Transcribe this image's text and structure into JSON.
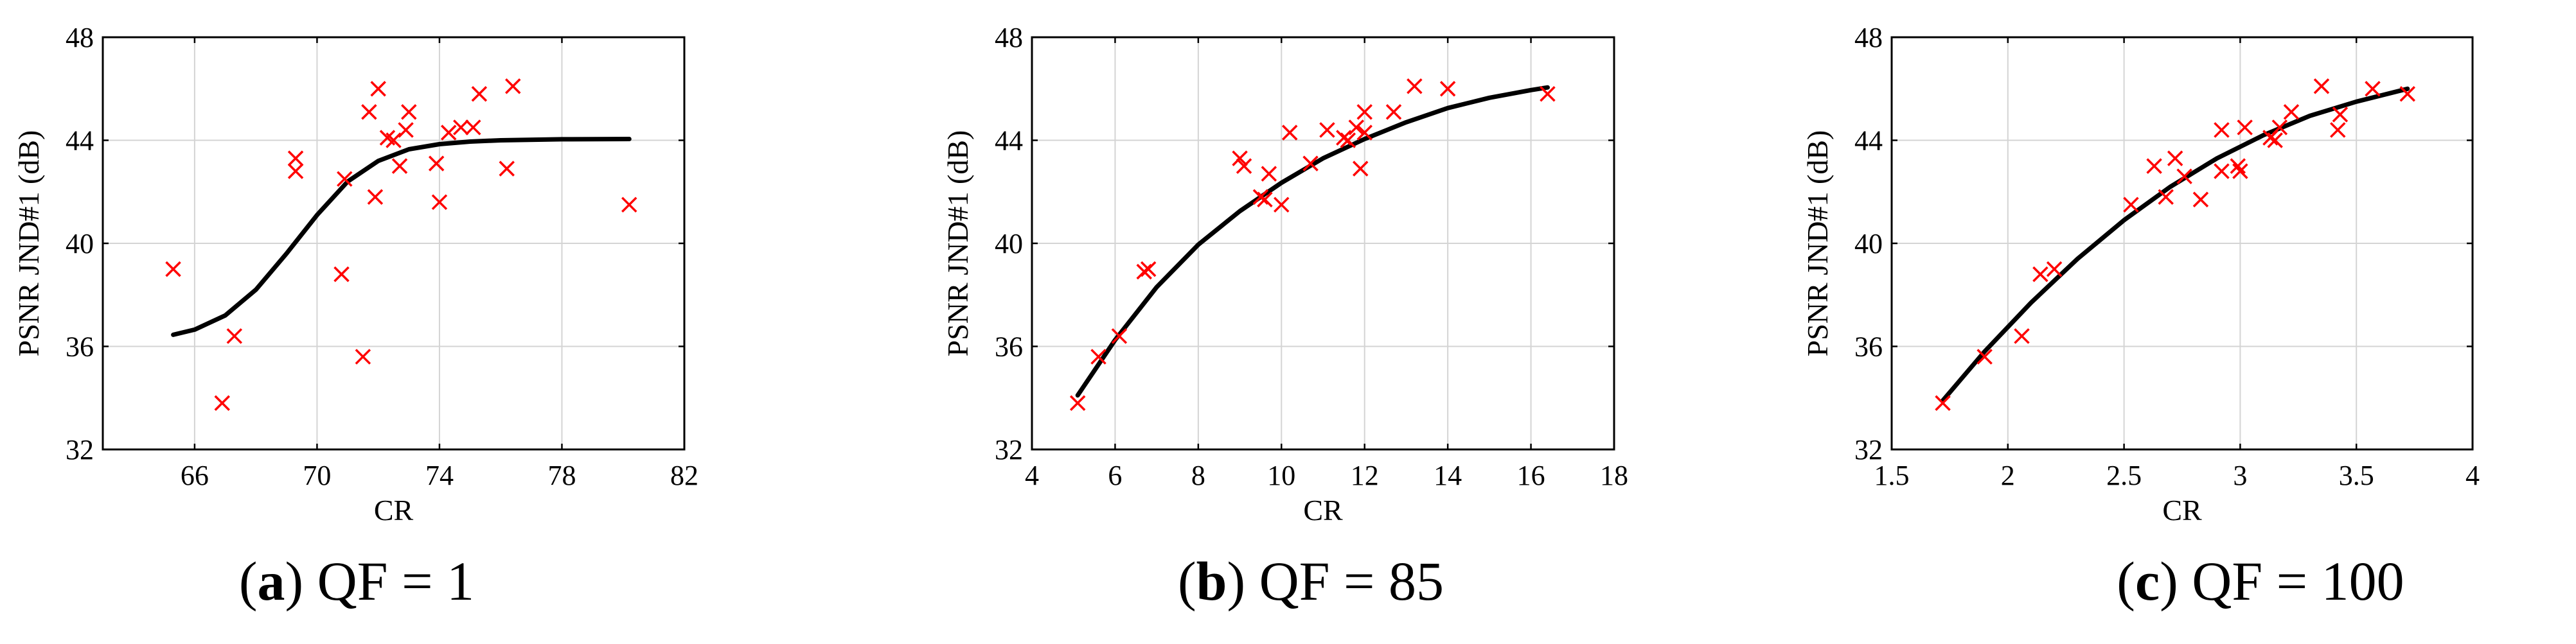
{
  "chart_data": [
    {
      "type": "scatter",
      "panel_letter": "a",
      "caption": "QF = 1",
      "xlabel": "CR",
      "ylabel": "PSNR JND#1 (dB)",
      "xlim": [
        63,
        82
      ],
      "ylim": [
        32,
        48
      ],
      "xticks": [
        "66",
        "70",
        "74",
        "78",
        "82"
      ],
      "xtick_values": [
        66,
        70,
        74,
        78,
        82
      ],
      "yticks": [
        "32",
        "36",
        "40",
        "44",
        "48"
      ],
      "ytick_values": [
        32,
        36,
        40,
        44,
        48
      ],
      "grid": true,
      "series": [
        {
          "name": "data",
          "marker": "x",
          "color": "#ff0000",
          "points": [
            [
              65.3,
              39.0
            ],
            [
              66.9,
              33.8
            ],
            [
              67.3,
              36.4
            ],
            [
              69.3,
              42.8
            ],
            [
              69.3,
              43.3
            ],
            [
              70.8,
              38.8
            ],
            [
              70.9,
              42.5
            ],
            [
              71.5,
              35.6
            ],
            [
              71.7,
              45.1
            ],
            [
              71.9,
              41.8
            ],
            [
              72.0,
              46.0
            ],
            [
              72.3,
              44.1
            ],
            [
              72.5,
              44.0
            ],
            [
              72.7,
              43.0
            ],
            [
              72.9,
              44.4
            ],
            [
              73.0,
              45.1
            ],
            [
              73.9,
              43.1
            ],
            [
              74.0,
              41.6
            ],
            [
              74.3,
              44.3
            ],
            [
              74.7,
              44.5
            ],
            [
              75.1,
              44.5
            ],
            [
              75.3,
              45.8
            ],
            [
              76.2,
              42.9
            ],
            [
              76.4,
              46.1
            ],
            [
              80.2,
              41.5
            ]
          ]
        },
        {
          "name": "fit",
          "type": "line",
          "color": "#000000",
          "points": [
            [
              65.3,
              36.45
            ],
            [
              66.0,
              36.65
            ],
            [
              67.0,
              37.2
            ],
            [
              68.0,
              38.2
            ],
            [
              69.0,
              39.6
            ],
            [
              70.0,
              41.1
            ],
            [
              71.0,
              42.4
            ],
            [
              72.0,
              43.2
            ],
            [
              73.0,
              43.65
            ],
            [
              74.0,
              43.85
            ],
            [
              75.0,
              43.95
            ],
            [
              76.0,
              44.0
            ],
            [
              78.0,
              44.04
            ],
            [
              80.2,
              44.05
            ]
          ]
        }
      ]
    },
    {
      "type": "scatter",
      "panel_letter": "b",
      "caption": "QF = 85",
      "xlabel": "CR",
      "ylabel": "PSNR JND#1 (dB)",
      "xlim": [
        4,
        18
      ],
      "ylim": [
        32,
        48
      ],
      "xticks": [
        "4",
        "6",
        "8",
        "10",
        "12",
        "14",
        "16",
        "18"
      ],
      "xtick_values": [
        4,
        6,
        8,
        10,
        12,
        14,
        16,
        18
      ],
      "yticks": [
        "32",
        "36",
        "40",
        "44",
        "48"
      ],
      "ytick_values": [
        32,
        36,
        40,
        44,
        48
      ],
      "grid": true,
      "series": [
        {
          "name": "data",
          "marker": "x",
          "color": "#ff0000",
          "points": [
            [
              5.1,
              33.8
            ],
            [
              5.6,
              35.6
            ],
            [
              6.1,
              36.4
            ],
            [
              6.7,
              38.9
            ],
            [
              6.8,
              39.0
            ],
            [
              9.0,
              43.3
            ],
            [
              9.1,
              43.0
            ],
            [
              9.5,
              41.8
            ],
            [
              9.6,
              41.7
            ],
            [
              9.7,
              42.7
            ],
            [
              10.0,
              41.5
            ],
            [
              10.2,
              44.3
            ],
            [
              10.7,
              43.1
            ],
            [
              11.1,
              44.4
            ],
            [
              11.5,
              44.1
            ],
            [
              11.6,
              44.0
            ],
            [
              11.8,
              44.5
            ],
            [
              11.9,
              42.9
            ],
            [
              12.0,
              44.3
            ],
            [
              12.0,
              45.1
            ],
            [
              12.7,
              45.1
            ],
            [
              13.2,
              46.1
            ],
            [
              14.0,
              46.0
            ],
            [
              16.4,
              45.8
            ]
          ]
        },
        {
          "name": "fit",
          "type": "line",
          "color": "#000000",
          "points": [
            [
              5.1,
              34.1
            ],
            [
              6.0,
              36.25
            ],
            [
              7.0,
              38.3
            ],
            [
              8.0,
              39.95
            ],
            [
              9.0,
              41.25
            ],
            [
              10.0,
              42.35
            ],
            [
              11.0,
              43.3
            ],
            [
              12.0,
              44.05
            ],
            [
              13.0,
              44.7
            ],
            [
              14.0,
              45.25
            ],
            [
              15.0,
              45.65
            ],
            [
              16.0,
              45.95
            ],
            [
              16.4,
              46.05
            ]
          ]
        }
      ]
    },
    {
      "type": "scatter",
      "panel_letter": "c",
      "caption": "QF = 100",
      "xlabel": "CR",
      "ylabel": "PSNR JND#1 (dB)",
      "xlim": [
        1.5,
        4
      ],
      "ylim": [
        32,
        48
      ],
      "xticks": [
        "1.5",
        "2",
        "2.5",
        "3",
        "3.5",
        "4"
      ],
      "xtick_values": [
        1.5,
        2,
        2.5,
        3,
        3.5,
        4
      ],
      "yticks": [
        "32",
        "36",
        "40",
        "44",
        "48"
      ],
      "ytick_values": [
        32,
        36,
        40,
        44,
        48
      ],
      "grid": true,
      "series": [
        {
          "name": "data",
          "marker": "x",
          "color": "#ff0000",
          "points": [
            [
              1.72,
              33.8
            ],
            [
              1.9,
              35.6
            ],
            [
              2.06,
              36.4
            ],
            [
              2.14,
              38.8
            ],
            [
              2.2,
              39.0
            ],
            [
              2.53,
              41.5
            ],
            [
              2.63,
              43.0
            ],
            [
              2.68,
              41.8
            ],
            [
              2.72,
              43.3
            ],
            [
              2.76,
              42.6
            ],
            [
              2.83,
              41.7
            ],
            [
              2.92,
              44.4
            ],
            [
              2.92,
              42.8
            ],
            [
              2.99,
              43.0
            ],
            [
              3.0,
              42.8
            ],
            [
              3.02,
              44.5
            ],
            [
              3.13,
              44.1
            ],
            [
              3.15,
              44.0
            ],
            [
              3.17,
              44.5
            ],
            [
              3.22,
              45.1
            ],
            [
              3.35,
              46.1
            ],
            [
              3.42,
              44.4
            ],
            [
              3.43,
              45.0
            ],
            [
              3.57,
              46.0
            ],
            [
              3.72,
              45.8
            ]
          ]
        },
        {
          "name": "fit",
          "type": "line",
          "color": "#000000",
          "points": [
            [
              1.72,
              33.9
            ],
            [
              1.9,
              35.8
            ],
            [
              2.1,
              37.7
            ],
            [
              2.3,
              39.4
            ],
            [
              2.5,
              40.9
            ],
            [
              2.7,
              42.2
            ],
            [
              2.9,
              43.3
            ],
            [
              3.1,
              44.2
            ],
            [
              3.3,
              44.95
            ],
            [
              3.5,
              45.5
            ],
            [
              3.72,
              46.0
            ]
          ]
        }
      ]
    }
  ]
}
